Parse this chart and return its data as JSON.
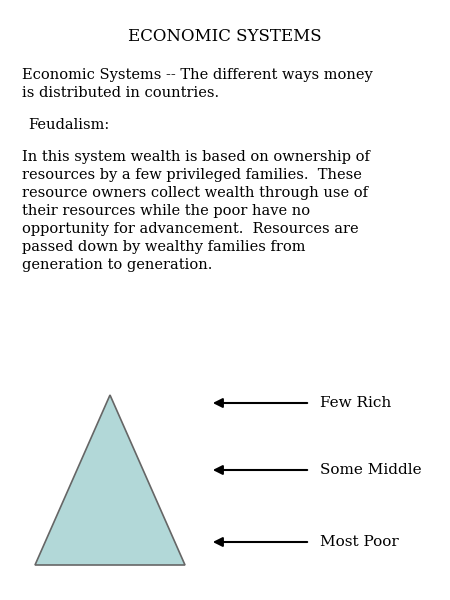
{
  "title": "ECONOMIC SYSTEMS",
  "bg_color": "#ffffff",
  "title_fontsize": 12,
  "subtitle_lines": [
    "Economic Systems -- The different ways money",
    "is distributed in countries."
  ],
  "section_header": "Feudalism:",
  "body_lines": [
    "In this system wealth is based on ownership of",
    "resources by a few privileged families.  These",
    "resource owners collect wealth through use of",
    "their resources while the poor have no",
    "opportunity for advancement.  Resources are",
    "passed down by wealthy families from",
    "generation to generation."
  ],
  "body_fontsize": 10.5,
  "triangle_color": "#b2d8d8",
  "triangle_edge_color": "#666666",
  "arrow_labels": [
    "Few Rich",
    "Some Middle",
    "Most Poor"
  ],
  "arrow_label_fontsize": 11
}
